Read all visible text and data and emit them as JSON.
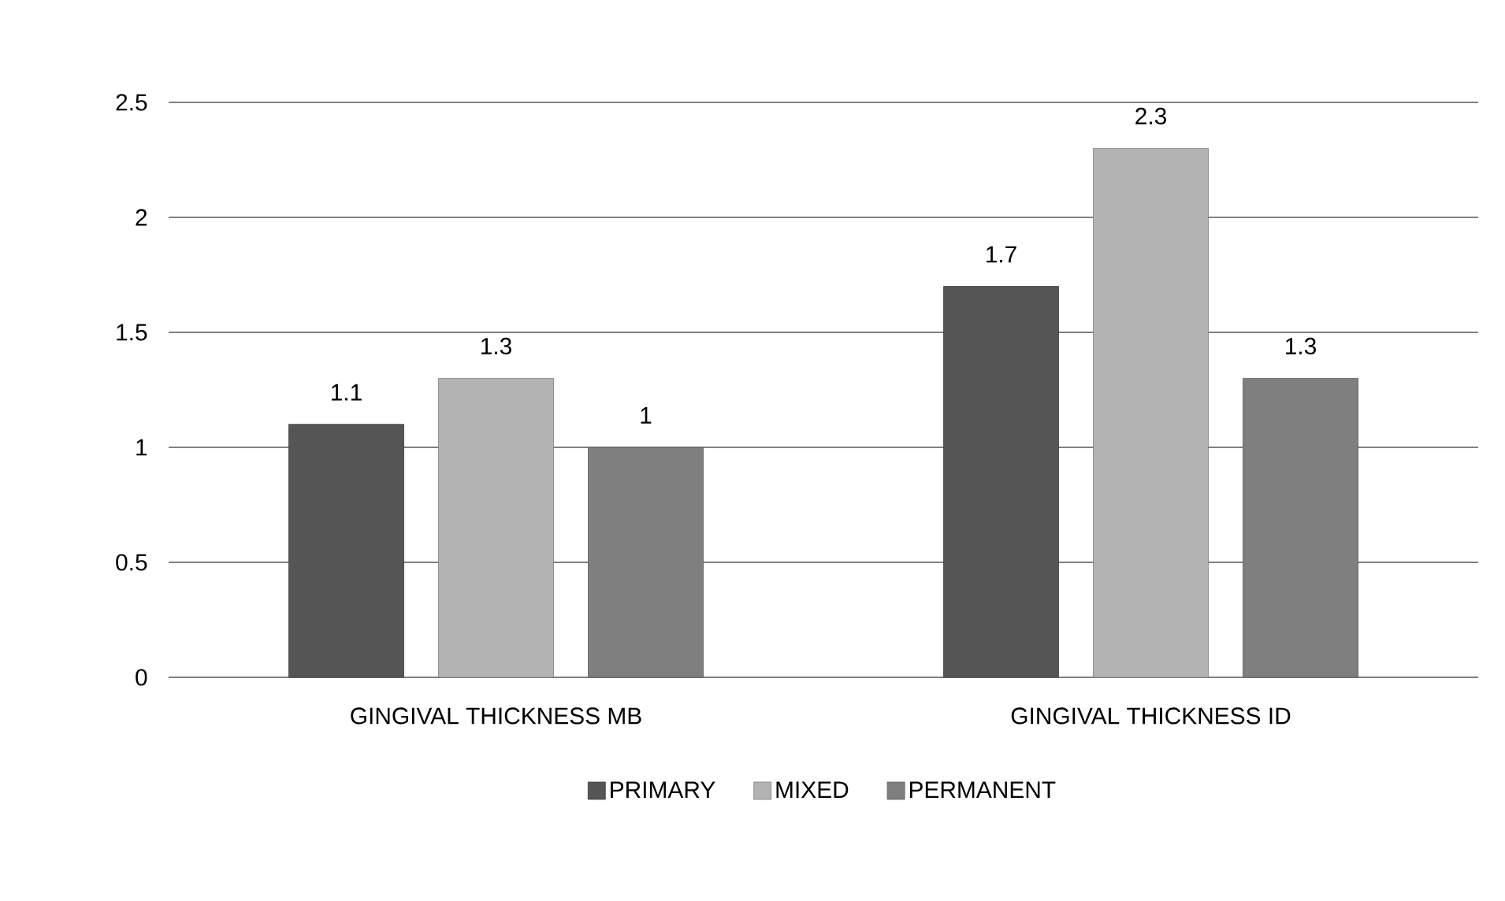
{
  "chart_data": {
    "type": "bar",
    "categories": [
      "GINGIVAL THICKNESS MB",
      "GINGIVAL THICKNESS ID"
    ],
    "series": [
      {
        "name": "PRIMARY",
        "color": "#555555",
        "values": [
          1.1,
          1.7
        ]
      },
      {
        "name": "MIXED",
        "color": "#b3b3b3",
        "values": [
          1.3,
          2.3
        ]
      },
      {
        "name": "PERMANENT",
        "color": "#7f7f7f",
        "values": [
          1,
          1.3
        ]
      }
    ],
    "ylim": [
      0,
      2.5
    ],
    "yticks": [
      0,
      0.5,
      1,
      1.5,
      2,
      2.5
    ],
    "grid": "y",
    "legend": "bottom",
    "data_labels": true
  }
}
